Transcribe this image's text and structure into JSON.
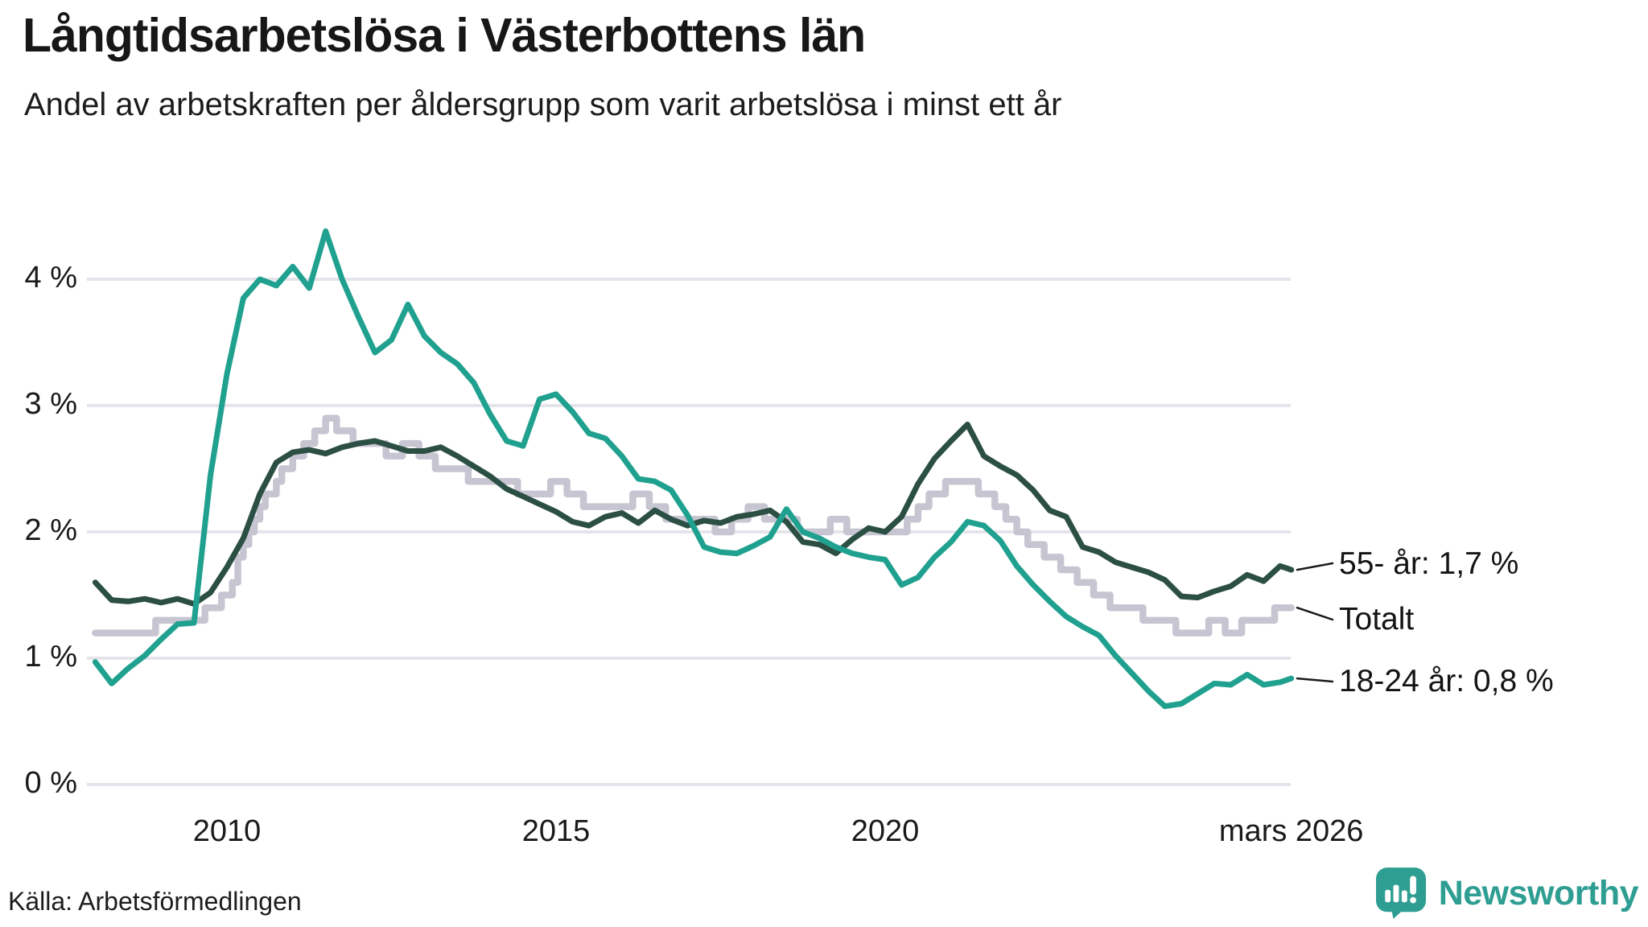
{
  "header": {
    "title": "Långtidsarbetslösa i Västerbottens län",
    "subtitle": "Andel av arbetskraften per åldersgrupp som varit arbetslösa i minst ett år"
  },
  "footer": {
    "source": "Källa: Arbetsförmedlingen",
    "logo_text": "Newsworthy"
  },
  "colors": {
    "teal_line": "#20a18f",
    "dark_green_line": "#2c4f44",
    "total_line": "#c7c5d1",
    "gridline": "#e5e4ea",
    "text": "#1a1a1a",
    "logo_teal": "#2f9e92"
  },
  "chart_data": {
    "type": "line",
    "title": "Långtidsarbetslösa i Västerbottens län",
    "subtitle": "Andel av arbetskraften per åldersgrupp som varit arbetslösa i minst ett år",
    "xlabel": "",
    "ylabel": "",
    "ylim": [
      0,
      4.55
    ],
    "xlim": [
      2007.95,
      2026.3
    ],
    "grid": "horizontal",
    "legend_position": "right-edge-labels",
    "y_ticks": [
      {
        "value": 0,
        "label": "0 %"
      },
      {
        "value": 1,
        "label": "1 %"
      },
      {
        "value": 2,
        "label": "2 %"
      },
      {
        "value": 3,
        "label": "3 %"
      },
      {
        "value": 4,
        "label": "4 %"
      }
    ],
    "x_ticks": [
      {
        "value": 2010,
        "label": "2010"
      },
      {
        "value": 2015,
        "label": "2015"
      },
      {
        "value": 2020,
        "label": "2020"
      },
      {
        "value": 2026.17,
        "label": "mars 2026"
      }
    ],
    "x": [
      2008.0,
      2008.25,
      2008.5,
      2008.75,
      2009.0,
      2009.25,
      2009.5,
      2009.75,
      2010.0,
      2010.25,
      2010.5,
      2010.75,
      2011.0,
      2011.25,
      2011.5,
      2011.75,
      2012.0,
      2012.25,
      2012.5,
      2012.75,
      2013.0,
      2013.25,
      2013.5,
      2013.75,
      2014.0,
      2014.25,
      2014.5,
      2014.75,
      2015.0,
      2015.25,
      2015.5,
      2015.75,
      2016.0,
      2016.25,
      2016.5,
      2016.75,
      2017.0,
      2017.25,
      2017.5,
      2017.75,
      2018.0,
      2018.25,
      2018.5,
      2018.75,
      2019.0,
      2019.25,
      2019.5,
      2019.75,
      2020.0,
      2020.25,
      2020.5,
      2020.75,
      2021.0,
      2021.25,
      2021.5,
      2021.75,
      2022.0,
      2022.25,
      2022.5,
      2022.75,
      2023.0,
      2023.25,
      2023.5,
      2023.75,
      2024.0,
      2024.25,
      2024.5,
      2024.75,
      2025.0,
      2025.25,
      2025.5,
      2025.75,
      2026.0,
      2026.17
    ],
    "series": [
      {
        "name": "Totalt",
        "label": "Totalt",
        "color": "#c7c5d1",
        "step": true,
        "line_width": 8.5,
        "end_value": 1.4,
        "values": [
          1.2,
          1.2,
          1.2,
          1.2,
          1.3,
          1.3,
          1.3,
          1.4,
          1.5,
          1.9,
          2.2,
          2.4,
          2.6,
          2.7,
          2.9,
          2.8,
          2.7,
          2.7,
          2.6,
          2.7,
          2.6,
          2.5,
          2.5,
          2.4,
          2.4,
          2.4,
          2.3,
          2.3,
          2.4,
          2.3,
          2.2,
          2.2,
          2.2,
          2.3,
          2.2,
          2.1,
          2.1,
          2.1,
          2.0,
          2.1,
          2.2,
          2.1,
          2.1,
          2.0,
          2.0,
          2.1,
          2.0,
          2.0,
          2.0,
          2.0,
          2.2,
          2.3,
          2.4,
          2.4,
          2.3,
          2.2,
          2.0,
          1.9,
          1.8,
          1.7,
          1.6,
          1.5,
          1.4,
          1.4,
          1.3,
          1.3,
          1.2,
          1.2,
          1.3,
          1.2,
          1.3,
          1.3,
          1.4,
          1.4
        ]
      },
      {
        "name": "55- år",
        "label": "55- år: 1,7 %",
        "color": "#2c4f44",
        "step": false,
        "line_width": 7,
        "end_value": 1.7,
        "values": [
          1.6,
          1.46,
          1.45,
          1.47,
          1.44,
          1.47,
          1.43,
          1.52,
          1.72,
          1.95,
          2.3,
          2.55,
          2.63,
          2.65,
          2.62,
          2.67,
          2.7,
          2.72,
          2.68,
          2.64,
          2.64,
          2.67,
          2.6,
          2.52,
          2.44,
          2.34,
          2.28,
          2.22,
          2.16,
          2.08,
          2.05,
          2.12,
          2.15,
          2.07,
          2.17,
          2.1,
          2.05,
          2.09,
          2.07,
          2.12,
          2.14,
          2.17,
          2.08,
          1.92,
          1.9,
          1.83,
          1.94,
          2.03,
          2.0,
          2.12,
          2.38,
          2.58,
          2.72,
          2.85,
          2.6,
          2.52,
          2.45,
          2.33,
          2.17,
          2.12,
          1.88,
          1.84,
          1.76,
          1.72,
          1.68,
          1.62,
          1.49,
          1.48,
          1.53,
          1.57,
          1.66,
          1.61,
          1.73,
          1.7
        ]
      },
      {
        "name": "18-24 år",
        "label": "18-24 år: 0,8 %",
        "color": "#20a18f",
        "step": false,
        "line_width": 7,
        "end_value": 0.8,
        "values": [
          0.97,
          0.8,
          0.92,
          1.02,
          1.15,
          1.27,
          1.28,
          2.45,
          3.25,
          3.85,
          4.0,
          3.95,
          4.1,
          3.93,
          4.38,
          4.0,
          3.7,
          3.42,
          3.52,
          3.8,
          3.55,
          3.42,
          3.33,
          3.18,
          2.93,
          2.72,
          2.68,
          3.05,
          3.09,
          2.95,
          2.78,
          2.74,
          2.6,
          2.42,
          2.4,
          2.33,
          2.13,
          1.88,
          1.84,
          1.83,
          1.89,
          1.96,
          2.18,
          2.0,
          1.95,
          1.88,
          1.83,
          1.8,
          1.78,
          1.58,
          1.64,
          1.8,
          1.92,
          2.08,
          2.05,
          1.93,
          1.73,
          1.58,
          1.45,
          1.33,
          1.25,
          1.18,
          1.02,
          0.88,
          0.74,
          0.62,
          0.64,
          0.72,
          0.8,
          0.79,
          0.87,
          0.79,
          0.81,
          0.84
        ]
      }
    ]
  }
}
